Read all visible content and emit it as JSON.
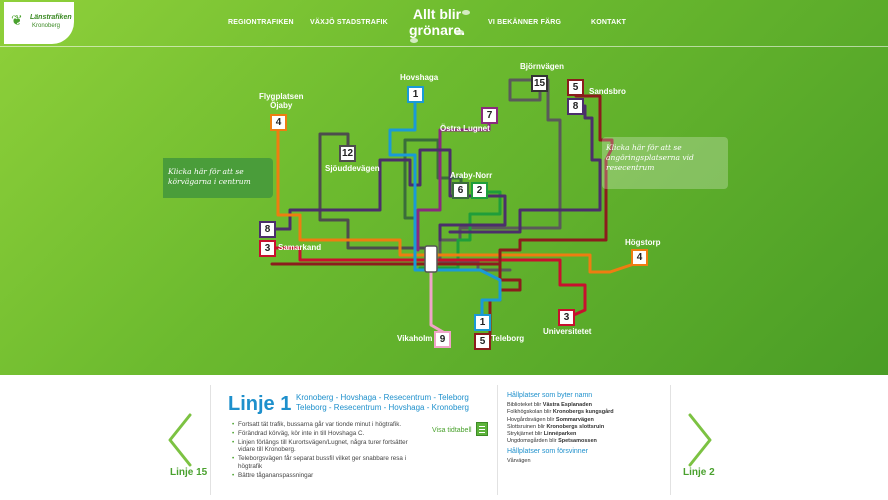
{
  "brand": {
    "name_line1": "Länstrafiken",
    "name_line2": "Kronoberg"
  },
  "nav": [
    "REGIONTRAFIKEN",
    "VÄXJÖ STADSTRAFIK",
    "VI BEKÄNNER FÄRG",
    "KONTAKT"
  ],
  "slogan": {
    "line1": "Allt blir",
    "line2": "grönare."
  },
  "map": {
    "tip_left": {
      "line1": "Klicka här för att se",
      "line2": "körvägarna i centrum"
    },
    "tip_right": {
      "line1": "Klicka här för att se",
      "line2": "angöringsplatserna vid",
      "line3": "resecentrum"
    },
    "stations": {
      "hovshaga": "Hovshaga",
      "bjornvagen": "Björnvägen",
      "sandsbro": "Sandsbro",
      "flygplatsen_line1": "Flygplatsen",
      "flygplatsen_line2": "Öjaby",
      "ostra_lugnet": "Östra Lugnet",
      "sjouddevagen": "Sjöuddevägen",
      "araby_norr": "Araby-Norr",
      "samarkand": "Samarkand",
      "hogstorp": "Högstorp",
      "universitetet": "Universitetet",
      "vikaholm": "Vikaholm",
      "teleborg": "Teleborg"
    },
    "badges": {
      "b1_top": "1",
      "b15": "15",
      "b5_top": "5",
      "b8_right": "8",
      "b4_left": "4",
      "b7": "7",
      "b12": "12",
      "b6": "6",
      "b2": "2",
      "b8_left": "8",
      "b3_left": "3",
      "b4_right": "4",
      "b3_bottom": "3",
      "b1_bottom": "1",
      "b9": "9",
      "b5_bottom": "5"
    },
    "colors": {
      "line1": "#1a9ad6",
      "line2": "#1f9e3a",
      "line3": "#c8102e",
      "line4": "#ee7d11",
      "line5": "#8b1d1d",
      "line6": "#3a6d3a",
      "line7": "#8a2a7e",
      "line8": "#4b2f6b",
      "line9": "#f0a4c8",
      "line12": "#4d4d4d",
      "line15": "#5a5a5a"
    }
  },
  "bottom": {
    "prev_label": "Linje 15",
    "next_label": "Linje 2",
    "line_title": "Linje 1",
    "route_line1": "Kronoberg - Hovshaga - Resecentrum - Teleborg",
    "route_line2": "Teleborg - Resecentrum - Hovshaga - Kronoberg",
    "bullets": [
      "Fortsatt tät trafik, bussarna går var tionde minut i högtrafik.",
      "Förändrad körväg, kör inte in till Hovshaga C.",
      "Linjen förlängs till Kurortsvägen/Lugnet, några turer fortsätter vidare till Kronoberg.",
      "Teleborgsvägen får separat bussfil vilket ger snabbare resa i högtrafik",
      "Bättre tågananspassningar"
    ],
    "visa_label": "Visa tidtabell",
    "renamed_title": "Hållplatser som byter namn",
    "renamed": [
      {
        "pre": "Biblioteket blir ",
        "bold": "Västra Esplanaden"
      },
      {
        "pre": "Folkhögskolan blir ",
        "bold": "Kronobergs kungsgård"
      },
      {
        "pre": "Hovgårdsvägen blir ",
        "bold": "Sommarvägen"
      },
      {
        "pre": "Slottsruinen blir ",
        "bold": "Kronobergs slottsruin"
      },
      {
        "pre": "Strykjärnet blir ",
        "bold": "Linnéparken"
      },
      {
        "pre": "Ungdomsgården blir ",
        "bold": "Spetsamossen"
      }
    ],
    "removed_title": "Hållplatser som försvinner",
    "removed": [
      "Vårvägen"
    ]
  }
}
